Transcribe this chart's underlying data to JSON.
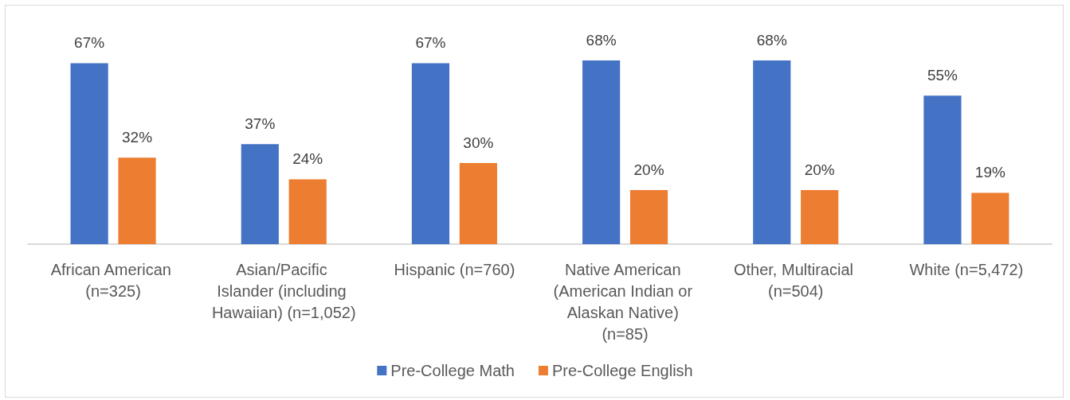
{
  "chart_data": {
    "type": "bar",
    "categories": [
      "African American (n=325)",
      "Asian/Pacific Islander (including Hawaiian) (n=1,052)",
      "Hispanic (n=760)",
      "Native American (American Indian or Alaskan Native) (n=85)",
      "Other, Multiracial (n=504)",
      "White (n=5,472)"
    ],
    "series": [
      {
        "name": "Pre-College Math",
        "color": "#4472c4",
        "values": [
          67,
          37,
          67,
          68,
          68,
          55
        ],
        "value_labels": [
          "67%",
          "37%",
          "67%",
          "68%",
          "68%",
          "55%"
        ]
      },
      {
        "name": "Pre-College English",
        "color": "#ed7d31",
        "values": [
          32,
          24,
          30,
          20,
          20,
          19
        ],
        "value_labels": [
          "32%",
          "24%",
          "30%",
          "20%",
          "20%",
          "19%"
        ]
      }
    ],
    "legend": "bottom",
    "tick_labels": "x"
  }
}
